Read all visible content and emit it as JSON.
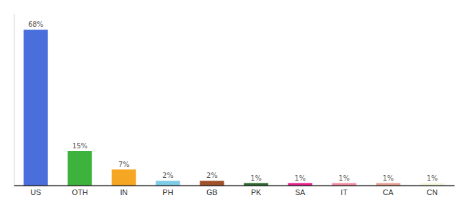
{
  "chart_data": {
    "type": "bar",
    "categories": [
      "US",
      "OTH",
      "IN",
      "PH",
      "GB",
      "PK",
      "SA",
      "IT",
      "CA",
      "CN"
    ],
    "values": [
      68,
      15,
      7,
      2,
      2,
      1,
      1,
      1,
      1,
      1
    ],
    "value_labels": [
      "68%",
      "15%",
      "7%",
      "2%",
      "2%",
      "1%",
      "1%",
      "1%",
      "1%",
      "1%"
    ],
    "colors": [
      "#4a6fdc",
      "#3db33d",
      "#f5a623",
      "#7ecce8",
      "#a0522d",
      "#2d6a2d",
      "#e91e8c",
      "#f48ca0",
      "#e8a090",
      "#f5f5dc"
    ],
    "ylim": [
      0,
      75
    ],
    "data_labels": true,
    "tick_labels": "x"
  }
}
